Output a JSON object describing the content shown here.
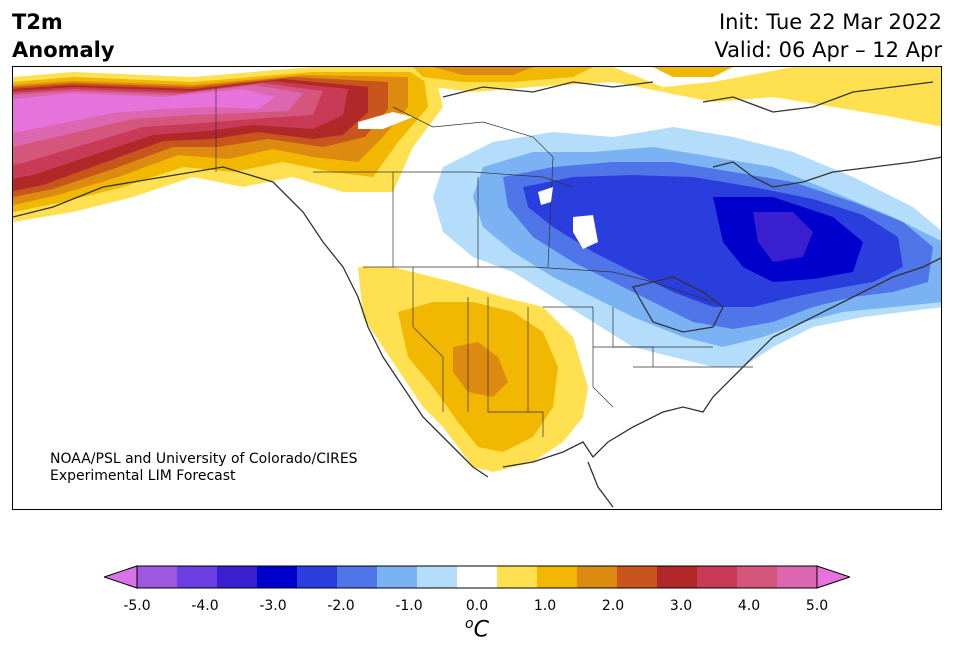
{
  "title": {
    "line1": "T2m",
    "line2": "Anomaly",
    "init": "Init: Tue 22 Mar 2022",
    "valid": "Valid: 06 Apr – 12 Apr"
  },
  "credit": {
    "line1": "NOAA/PSL and University of Colorado/CIRES",
    "line2": "Experimental LIM Forecast"
  },
  "colorbar": {
    "colors": [
      "#d872e6",
      "#a057e0",
      "#6a3ee0",
      "#3a1fd0",
      "#0000cc",
      "#2a3ede",
      "#5075e8",
      "#7ab2f4",
      "#b4dcfb",
      "#ffffff",
      "#ffe050",
      "#f2b700",
      "#dd8a10",
      "#c8551c",
      "#b02828",
      "#c83a55",
      "#d4567c",
      "#dc66b0",
      "#e673dc"
    ],
    "ticks": [
      "-5.0",
      "-4.0",
      "-3.0",
      "-2.0",
      "-1.0",
      "0.0",
      "1.0",
      "2.0",
      "3.0",
      "4.0",
      "5.0"
    ],
    "unit_sup": "o",
    "unit": "C"
  }
}
